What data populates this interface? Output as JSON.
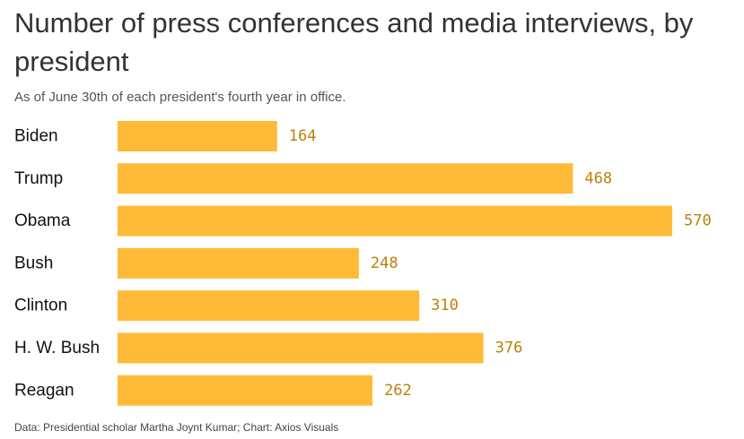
{
  "chart_data": {
    "type": "bar",
    "orientation": "horizontal",
    "title": "Number of press conferences and media interviews, by president",
    "subtitle": "As of June 30th of each president's fourth year in office.",
    "categories": [
      "Biden",
      "Trump",
      "Obama",
      "Bush",
      "Clinton",
      "H. W. Bush",
      "Reagan"
    ],
    "values": [
      164,
      468,
      570,
      248,
      310,
      376,
      262
    ],
    "xlim": [
      0,
      570
    ],
    "grid": false,
    "bar_color": "#FFBA38",
    "value_label_color": "#B98108",
    "source": "Data: Presidential scholar Martha Joynt Kumar; Chart: Axios Visuals"
  }
}
